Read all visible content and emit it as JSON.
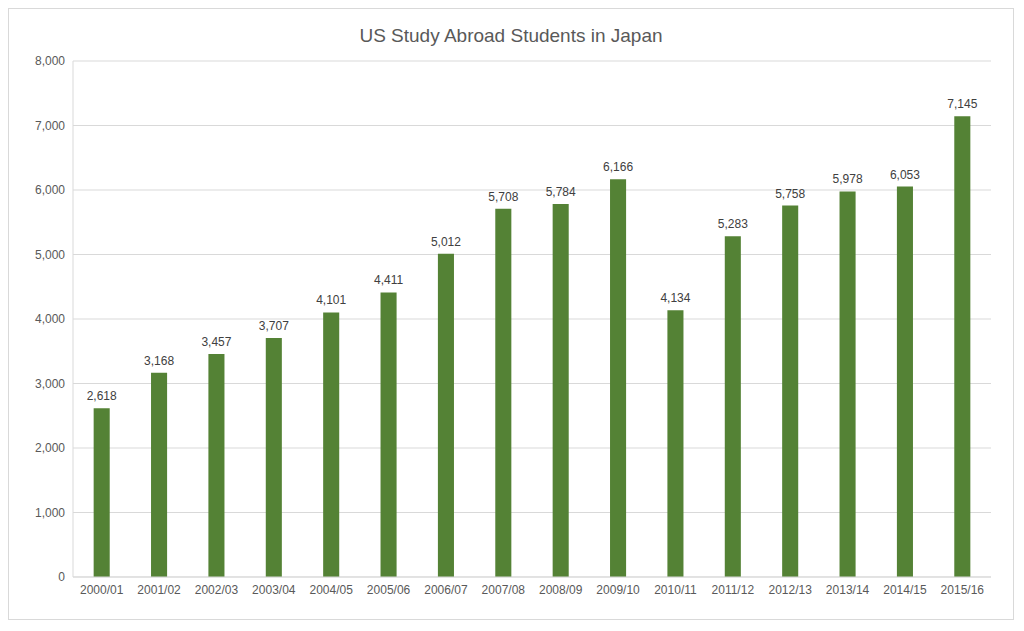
{
  "chart_data": {
    "type": "bar",
    "title": "US Study Abroad Students in Japan",
    "categories": [
      "2000/01",
      "2001/02",
      "2002/03",
      "2003/04",
      "2004/05",
      "2005/06",
      "2006/07",
      "2007/08",
      "2008/09",
      "2009/10",
      "2010/11",
      "2011/12",
      "2012/13",
      "2013/14",
      "2014/15",
      "2015/16"
    ],
    "values": [
      2618,
      3168,
      3457,
      3707,
      4101,
      4411,
      5012,
      5708,
      5784,
      6166,
      4134,
      5283,
      5758,
      5978,
      6053,
      7145
    ],
    "value_labels": [
      "2,618",
      "3,168",
      "3,457",
      "3,707",
      "4,101",
      "4,411",
      "5,012",
      "5,708",
      "5,784",
      "6,166",
      "4,134",
      "5,283",
      "5,758",
      "5,978",
      "6,053",
      "7,145"
    ],
    "color": "#548235",
    "ylim": [
      0,
      8000
    ],
    "yticks": [
      0,
      {
        "value": 1000,
        "label": "1,000"
      },
      {
        "value": 2000,
        "label": "2,000"
      },
      {
        "value": 3000,
        "label": "3,000"
      },
      {
        "value": 4000,
        "label": "4,000"
      },
      {
        "value": 5000,
        "label": "5,000"
      },
      {
        "value": 6000,
        "label": "6,000"
      },
      {
        "value": 7000,
        "label": "7,000"
      },
      {
        "value": 8000,
        "label": "8,000"
      }
    ],
    "grid": true,
    "data_labels": true
  }
}
